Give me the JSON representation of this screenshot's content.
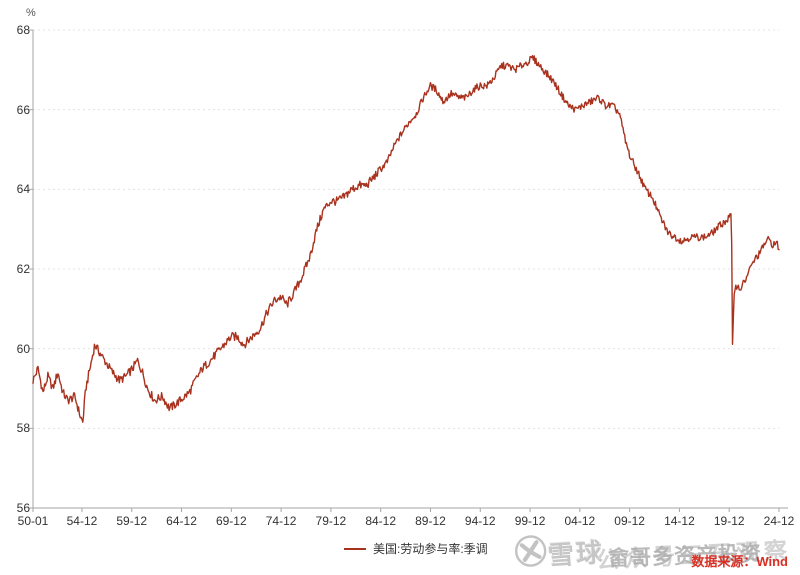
{
  "chart": {
    "unit_label": "%",
    "legend_label": "美国:劳动参与率:季调",
    "source_text": "数据来源：Wind",
    "line_color": "#A8321E",
    "grid_color": "#e3e3e3",
    "axis_color": "#a6a6a6",
    "source_color": "#d93025"
  },
  "watermark": {
    "brand": "雪球",
    "back_text": "公众号三石观察",
    "front_text": "畲哥多资产投资"
  },
  "chart_data": {
    "type": "line",
    "title": "",
    "xlabel": "",
    "ylabel": "%",
    "x_range": [
      "1950-01",
      "2024-12"
    ],
    "ylim": [
      56,
      68
    ],
    "grid": "horizontal-dashed",
    "legend_position": "bottom-center",
    "series_name": "美国:劳动参与率:季调",
    "y_ticks": [
      "68",
      "66",
      "64",
      "62",
      "60",
      "58",
      "56"
    ],
    "x_ticks": [
      {
        "label": "50-01",
        "m": 0
      },
      {
        "label": "54-12",
        "m": 59
      },
      {
        "label": "59-12",
        "m": 119
      },
      {
        "label": "64-12",
        "m": 179
      },
      {
        "label": "69-12",
        "m": 239
      },
      {
        "label": "74-12",
        "m": 299
      },
      {
        "label": "79-12",
        "m": 359
      },
      {
        "label": "84-12",
        "m": 419
      },
      {
        "label": "89-12",
        "m": 479
      },
      {
        "label": "94-12",
        "m": 539
      },
      {
        "label": "99-12",
        "m": 599
      },
      {
        "label": "04-12",
        "m": 659
      },
      {
        "label": "09-12",
        "m": 719
      },
      {
        "label": "14-12",
        "m": 779
      },
      {
        "label": "19-12",
        "m": 839
      },
      {
        "label": "24-12",
        "m": 899
      }
    ],
    "key_points": [
      {
        "date": "1950-01",
        "value": 59.2
      },
      {
        "date": "1954-12",
        "value": 58.1,
        "note": "early low"
      },
      {
        "date": "1956-03",
        "value": 60.1,
        "note": "1950s peak"
      },
      {
        "date": "2000-03",
        "value": 67.3,
        "note": "all-time peak"
      },
      {
        "date": "2020-02",
        "value": 63.4,
        "note": "pre-COVID"
      },
      {
        "date": "2020-04",
        "value": 60.1,
        "note": "COVID crash"
      },
      {
        "date": "2024-12",
        "value": 62.5,
        "note": "last value"
      }
    ],
    "anchors": [
      [
        1950.0,
        59.2
      ],
      [
        1950.5,
        59.5
      ],
      [
        1951.0,
        58.9
      ],
      [
        1951.5,
        59.3
      ],
      [
        1952.0,
        59.0
      ],
      [
        1952.5,
        59.4
      ],
      [
        1953.0,
        58.9
      ],
      [
        1953.5,
        58.7
      ],
      [
        1954.2,
        58.8
      ],
      [
        1954.75,
        58.3
      ],
      [
        1955.0,
        58.15
      ],
      [
        1955.3,
        59.0
      ],
      [
        1955.8,
        59.6
      ],
      [
        1956.2,
        60.1
      ],
      [
        1956.7,
        59.9
      ],
      [
        1957.2,
        59.7
      ],
      [
        1958.0,
        59.4
      ],
      [
        1958.7,
        59.2
      ],
      [
        1959.3,
        59.3
      ],
      [
        1960.0,
        59.5
      ],
      [
        1960.5,
        59.7
      ],
      [
        1961.0,
        59.4
      ],
      [
        1961.5,
        59.0
      ],
      [
        1962.2,
        58.7
      ],
      [
        1963.0,
        58.8
      ],
      [
        1963.7,
        58.5
      ],
      [
        1964.3,
        58.6
      ],
      [
        1965.0,
        58.75
      ],
      [
        1965.7,
        58.9
      ],
      [
        1966.3,
        59.2
      ],
      [
        1967.0,
        59.5
      ],
      [
        1967.8,
        59.7
      ],
      [
        1968.5,
        59.9
      ],
      [
        1969.2,
        60.1
      ],
      [
        1969.9,
        60.3
      ],
      [
        1970.5,
        60.3
      ],
      [
        1971.2,
        60.1
      ],
      [
        1972.0,
        60.3
      ],
      [
        1972.8,
        60.5
      ],
      [
        1973.5,
        60.9
      ],
      [
        1974.2,
        61.2
      ],
      [
        1974.9,
        61.3
      ],
      [
        1975.5,
        61.1
      ],
      [
        1976.2,
        61.4
      ],
      [
        1977.0,
        61.8
      ],
      [
        1977.8,
        62.3
      ],
      [
        1978.5,
        63.0
      ],
      [
        1979.2,
        63.5
      ],
      [
        1979.9,
        63.7
      ],
      [
        1980.5,
        63.7
      ],
      [
        1981.2,
        63.8
      ],
      [
        1982.0,
        64.0
      ],
      [
        1982.8,
        64.1
      ],
      [
        1983.5,
        64.1
      ],
      [
        1984.2,
        64.3
      ],
      [
        1984.9,
        64.5
      ],
      [
        1985.6,
        64.7
      ],
      [
        1986.3,
        65.1
      ],
      [
        1987.0,
        65.4
      ],
      [
        1987.8,
        65.7
      ],
      [
        1988.5,
        65.9
      ],
      [
        1989.2,
        66.3
      ],
      [
        1989.9,
        66.6
      ],
      [
        1990.5,
        66.5
      ],
      [
        1991.2,
        66.2
      ],
      [
        1992.0,
        66.4
      ],
      [
        1992.8,
        66.3
      ],
      [
        1993.5,
        66.3
      ],
      [
        1994.2,
        66.5
      ],
      [
        1994.9,
        66.6
      ],
      [
        1995.6,
        66.6
      ],
      [
        1996.3,
        66.8
      ],
      [
        1997.0,
        67.1
      ],
      [
        1997.7,
        67.1
      ],
      [
        1998.4,
        67.0
      ],
      [
        1999.0,
        67.1
      ],
      [
        1999.7,
        67.2
      ],
      [
        2000.2,
        67.3
      ],
      [
        2000.9,
        67.1
      ],
      [
        2001.6,
        66.9
      ],
      [
        2002.3,
        66.7
      ],
      [
        2003.0,
        66.4
      ],
      [
        2003.8,
        66.1
      ],
      [
        2004.5,
        66.0
      ],
      [
        2005.2,
        66.1
      ],
      [
        2006.0,
        66.2
      ],
      [
        2006.8,
        66.3
      ],
      [
        2007.5,
        66.1
      ],
      [
        2008.2,
        66.1
      ],
      [
        2008.9,
        65.9
      ],
      [
        2009.5,
        65.2
      ],
      [
        2010.0,
        64.8
      ],
      [
        2010.8,
        64.4
      ],
      [
        2011.5,
        64.0
      ],
      [
        2012.2,
        63.8
      ],
      [
        2013.0,
        63.3
      ],
      [
        2013.8,
        62.9
      ],
      [
        2014.5,
        62.8
      ],
      [
        2015.2,
        62.7
      ],
      [
        2016.0,
        62.8
      ],
      [
        2016.8,
        62.8
      ],
      [
        2017.5,
        62.8
      ],
      [
        2018.2,
        62.9
      ],
      [
        2019.0,
        63.1
      ],
      [
        2019.8,
        63.25
      ],
      [
        2020.08,
        63.4
      ],
      [
        2020.17,
        62.6
      ],
      [
        2020.25,
        60.1
      ],
      [
        2020.33,
        60.8
      ],
      [
        2020.42,
        61.4
      ],
      [
        2020.6,
        61.6
      ],
      [
        2021.0,
        61.5
      ],
      [
        2021.5,
        61.7
      ],
      [
        2022.0,
        62.0
      ],
      [
        2022.5,
        62.25
      ],
      [
        2023.0,
        62.4
      ],
      [
        2023.5,
        62.65
      ],
      [
        2023.9,
        62.75
      ],
      [
        2024.3,
        62.6
      ],
      [
        2024.7,
        62.65
      ],
      [
        2024.92,
        62.5
      ]
    ]
  }
}
